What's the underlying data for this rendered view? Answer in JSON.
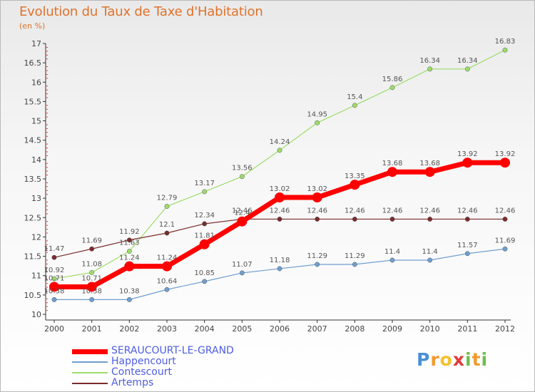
{
  "header": {
    "title": "Evolution du Taux de Taxe d'Habitation",
    "subtitle": "(en %)"
  },
  "logo": {
    "text": "Proxiti"
  },
  "chart_data": {
    "type": "line",
    "x": [
      "2000",
      "2001",
      "2002",
      "2003",
      "2004",
      "2005",
      "2006",
      "2007",
      "2008",
      "2009",
      "2010",
      "2011",
      "2012"
    ],
    "ylim": [
      10,
      17
    ],
    "yticks": [
      "10",
      "10.5",
      "11",
      "11.5",
      "12",
      "12.5",
      "13",
      "13.5",
      "14",
      "14.5",
      "15",
      "15.5",
      "16",
      "16.5",
      "17"
    ],
    "grid": false,
    "legend_position": "bottom-left",
    "series": [
      {
        "name": "SERAUCOURT-LE-GRAND",
        "color": "#ff0000",
        "width": 7,
        "marker": 7,
        "values": [
          10.71,
          10.71,
          11.24,
          11.24,
          11.81,
          12.4,
          13.02,
          13.02,
          13.35,
          13.68,
          13.68,
          13.92,
          13.92
        ],
        "labels": [
          "10.71",
          "10.71",
          "11.24",
          "11.24",
          "11.81",
          "12.4",
          "13.02",
          "13.02",
          "13.35",
          "13.68",
          "13.68",
          "13.92",
          "13.92"
        ]
      },
      {
        "name": "Happencourt",
        "color": "#6f9fd0",
        "width": 1.2,
        "marker": 3.2,
        "values": [
          10.38,
          10.38,
          10.38,
          10.64,
          10.85,
          11.07,
          11.18,
          11.29,
          11.29,
          11.4,
          11.4,
          11.57,
          11.69
        ],
        "labels": [
          "10.38",
          "10.38",
          "10.38",
          "10.64",
          "10.85",
          "11.07",
          "11.18",
          "11.29",
          "11.29",
          "11.4",
          "11.4",
          "11.57",
          "11.69"
        ]
      },
      {
        "name": "Contescourt",
        "color": "#9ddc6a",
        "width": 1.2,
        "marker": 3.2,
        "values": [
          10.92,
          11.08,
          11.63,
          12.79,
          13.17,
          13.56,
          14.24,
          14.95,
          15.4,
          15.86,
          16.34,
          16.34,
          16.83
        ],
        "labels": [
          "10.92",
          "11.08",
          "11.63",
          "12.79",
          "13.17",
          "13.56",
          "14.24",
          "14.95",
          "15.4",
          "15.86",
          "16.34",
          "16.34",
          "16.83"
        ]
      },
      {
        "name": "Artemps",
        "color": "#7a2b2b",
        "width": 1.2,
        "marker": 3.2,
        "values": [
          11.47,
          11.69,
          11.92,
          12.1,
          12.34,
          12.46,
          12.46,
          12.46,
          12.46,
          12.46,
          12.46,
          12.46,
          12.46
        ],
        "labels": [
          "11.47",
          "11.69",
          "11.92",
          "12.1",
          "12.34",
          "12.46",
          "12.46",
          "12.46",
          "12.46",
          "12.46",
          "12.46",
          "12.46",
          "12.46"
        ]
      }
    ]
  }
}
